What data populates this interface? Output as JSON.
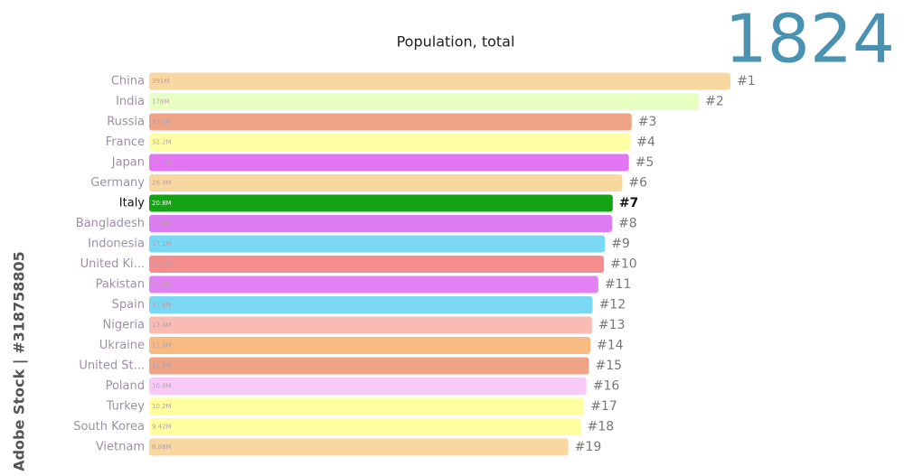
{
  "chart_data": {
    "type": "bar",
    "orientation": "horizontal",
    "title": "Population, total",
    "year": "1824",
    "watermark": "Adobe Stock | #318758805",
    "categories": [
      "China",
      "India",
      "Russia",
      "France",
      "Japan",
      "Germany",
      "Italy",
      "Bangladesh",
      "Indonesia",
      "United Ki...",
      "Pakistan",
      "Spain",
      "Nigeria",
      "Ukraine",
      "United St...",
      "Poland",
      "Turkey",
      "South Korea",
      "Vietnam"
    ],
    "values": [
      391,
      178,
      33.3,
      32.2,
      31.1,
      26.4,
      20.8,
      20.4,
      17.1,
      16.7,
      14.5,
      12.6,
      12.4,
      11.9,
      11.5,
      10.8,
      10.2,
      9.42,
      6.88
    ],
    "value_labels": [
      "391M",
      "178M",
      "33.3M",
      "32.2M",
      "31.1M",
      "26.4M",
      "20.8M",
      "20.4M",
      "17.1M",
      "16.7M",
      "14.5M",
      "12.6M",
      "12.4M",
      "11.9M",
      "11.5M",
      "10.8M",
      "10.2M",
      "9.42M",
      "6.88M"
    ],
    "ranks": [
      "#1",
      "#2",
      "#3",
      "#4",
      "#5",
      "#6",
      "#7",
      "#8",
      "#9",
      "#10",
      "#11",
      "#12",
      "#13",
      "#14",
      "#15",
      "#16",
      "#17",
      "#18",
      "#19"
    ],
    "colors": [
      "#f9d7a0",
      "#e8ffc4",
      "#f0a486",
      "#ffffa6",
      "#e276f2",
      "#f9d7a0",
      "#14a314",
      "#de7cf2",
      "#7ad8f4",
      "#f48e8e",
      "#e282f2",
      "#7ad8f4",
      "#f8bcb4",
      "#f8ba80",
      "#f0a486",
      "#f8caf8",
      "#ffffa0",
      "#ffffa0",
      "#f9d7a0"
    ],
    "highlight": 6,
    "log_scale": true,
    "xlim": [
      0.0002,
      500
    ]
  }
}
